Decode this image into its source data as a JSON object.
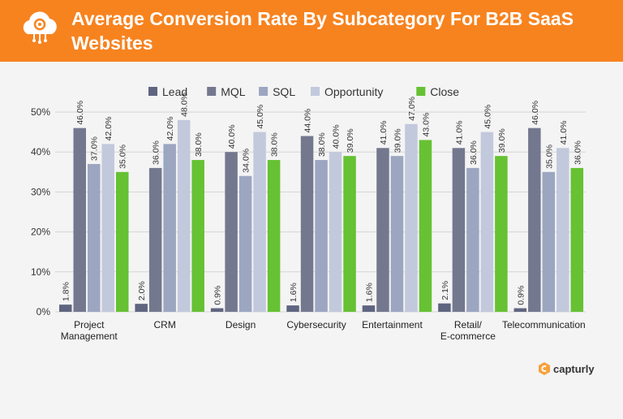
{
  "header": {
    "title": "Average Conversion Rate By Subcategory For B2B SaaS Websites"
  },
  "brand": {
    "name": "capturly"
  },
  "chart_data": {
    "type": "bar",
    "title": "Average Conversion Rate By Subcategory For B2B SaaS Websites",
    "categories": [
      "Project Management",
      "CRM",
      "Design",
      "Cybersecurity",
      "Entertainment",
      "Retail/ E-commerce",
      "Telecommunication"
    ],
    "series": [
      {
        "name": "Lead",
        "color": "#5f6580",
        "values": [
          1.8,
          2.0,
          0.9,
          1.6,
          1.6,
          2.1,
          0.9
        ]
      },
      {
        "name": "MQL",
        "color": "#74788f",
        "values": [
          46.0,
          36.0,
          40.0,
          44.0,
          41.0,
          41.0,
          46.0
        ]
      },
      {
        "name": "SQL",
        "color": "#9ca6c1",
        "values": [
          37.0,
          42.0,
          34.0,
          38.0,
          39.0,
          36.0,
          35.0
        ]
      },
      {
        "name": "Opportunity",
        "color": "#c3c9dc",
        "values": [
          42.0,
          48.0,
          45.0,
          40.0,
          47.0,
          45.0,
          41.0
        ]
      },
      {
        "name": "Close",
        "color": "#66c133",
        "values": [
          35.0,
          38.0,
          38.0,
          39.0,
          43.0,
          39.0,
          36.0
        ]
      }
    ],
    "yticks": [
      "0%",
      "10%",
      "20%",
      "30%",
      "40%",
      "50%"
    ],
    "ylim": [
      0,
      50
    ],
    "grid": true,
    "legend": "top"
  }
}
